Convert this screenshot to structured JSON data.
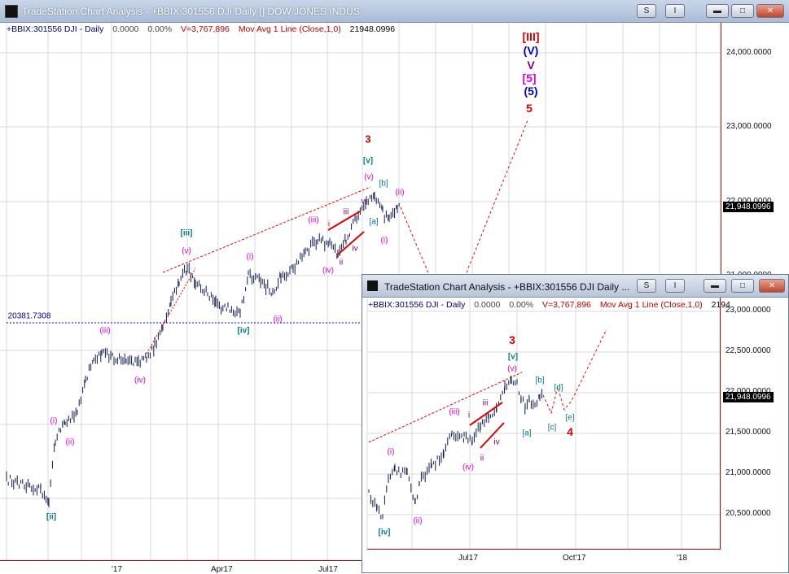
{
  "window": {
    "title": "TradeStation Chart Analysis - +BBIX:301556 DJI Daily [] DOW JONES INDUS",
    "buttons": [
      "S",
      "I",
      "",
      "",
      ""
    ]
  },
  "main_chart": {
    "legend": {
      "symbol": "+BBIX:301556 DJI - Daily",
      "change": "0.0000",
      "pct": "0.00%",
      "volume": "V=3,767,896",
      "indicator": "Mov Avg 1 Line (Close,1,0)",
      "last": "21948.0996"
    },
    "y_ticks": [
      "24,000.0000",
      "23,000.0000",
      "22,000.0000",
      "21,000.0000"
    ],
    "x_ticks": [
      "'17",
      "Apr17",
      "Jul17"
    ],
    "last_price": "21,948.0996",
    "level_label": "20381.7308",
    "annotations": [
      {
        "t": "[III]",
        "c": "#e00000",
        "b": true
      },
      {
        "t": "(V)",
        "c": "#0000c0",
        "b": true
      },
      {
        "t": "V",
        "c": "#800080",
        "b": true
      },
      {
        "t": "[5]",
        "c": "#e000e0",
        "b": true
      },
      {
        "t": "(5)",
        "c": "#0000c0",
        "b": true
      },
      {
        "t": "5",
        "c": "#e00000",
        "b": true
      },
      {
        "t": "3",
        "c": "#e00000",
        "b": true
      },
      {
        "t": "[v]",
        "c": "#008080",
        "b": true
      },
      {
        "t": "(v)",
        "c": "#e000e0"
      },
      {
        "t": "[b]",
        "c": "#008080"
      },
      {
        "t": "(ii)",
        "c": "#e000e0"
      },
      {
        "t": "[a]",
        "c": "#008080"
      },
      {
        "t": "(i)",
        "c": "#e000e0"
      },
      {
        "t": "v",
        "c": "#800080"
      },
      {
        "t": "iii",
        "c": "#800080"
      },
      {
        "t": "i",
        "c": "#e00000"
      },
      {
        "t": "(iii)",
        "c": "#e000e0"
      },
      {
        "t": "iv",
        "c": "#800080"
      },
      {
        "t": "ii",
        "c": "#800080"
      },
      {
        "t": "(iv)",
        "c": "#e000e0"
      },
      {
        "t": "(i)",
        "c": "#e000e0"
      },
      {
        "t": "[iii]",
        "c": "#008080",
        "b": true
      },
      {
        "t": "(v)",
        "c": "#e000e0"
      },
      {
        "t": "[iv]",
        "c": "#008080",
        "b": true
      },
      {
        "t": "(ii)",
        "c": "#e000e0"
      },
      {
        "t": "(iii)",
        "c": "#e000e0"
      },
      {
        "t": "(iv)",
        "c": "#e000e0"
      },
      {
        "t": "(i)",
        "c": "#e000e0"
      },
      {
        "t": "(ii)",
        "c": "#e000e0"
      },
      {
        "t": "[ii]",
        "c": "#008080",
        "b": true
      }
    ]
  },
  "inset_window": {
    "title": "TradeStation Chart Analysis - +BBIX:301556 DJI Daily ...",
    "legend": {
      "symbol": "+BBIX:301556 DJI - Daily",
      "change": "0.0000",
      "pct": "0.00%",
      "volume": "V=3,767,896",
      "indicator": "Mov Avg 1 Line (Close,1,0)",
      "last": "2194"
    },
    "y_ticks": [
      "23,000.0000",
      "22,500.0000",
      "22,000.0000",
      "21,500.0000",
      "21,000.0000",
      "20,500.0000"
    ],
    "x_ticks": [
      "Jul17",
      "Oct'17",
      "'18"
    ],
    "last_price": "21,948.0996",
    "annotations": [
      {
        "t": "3",
        "c": "#e00000",
        "b": true
      },
      {
        "t": "[v]",
        "c": "#008080",
        "b": true
      },
      {
        "t": "(v)",
        "c": "#e000e0"
      },
      {
        "t": "[b]",
        "c": "#008080"
      },
      {
        "t": "[d]",
        "c": "#008080"
      },
      {
        "t": "iii",
        "c": "#800080"
      },
      {
        "t": "i",
        "c": "#e00000"
      },
      {
        "t": "(iii)",
        "c": "#e000e0"
      },
      {
        "t": "[e]",
        "c": "#008080"
      },
      {
        "t": "[c]",
        "c": "#008080"
      },
      {
        "t": "4",
        "c": "#e00000",
        "b": true
      },
      {
        "t": "[a]",
        "c": "#008080"
      },
      {
        "t": "iv",
        "c": "#800080"
      },
      {
        "t": "(iv)",
        "c": "#e000e0"
      },
      {
        "t": "ii",
        "c": "#800080"
      },
      {
        "t": "(i)",
        "c": "#e000e0"
      },
      {
        "t": "[iv]",
        "c": "#008080",
        "b": true
      },
      {
        "t": "(ii)",
        "c": "#e000e0"
      }
    ]
  },
  "colors": {
    "red": "#e00000",
    "magenta": "#e000e0",
    "teal": "#008080",
    "purple": "#800080",
    "blue": "#0000c0",
    "bars": "#0a1a50"
  }
}
